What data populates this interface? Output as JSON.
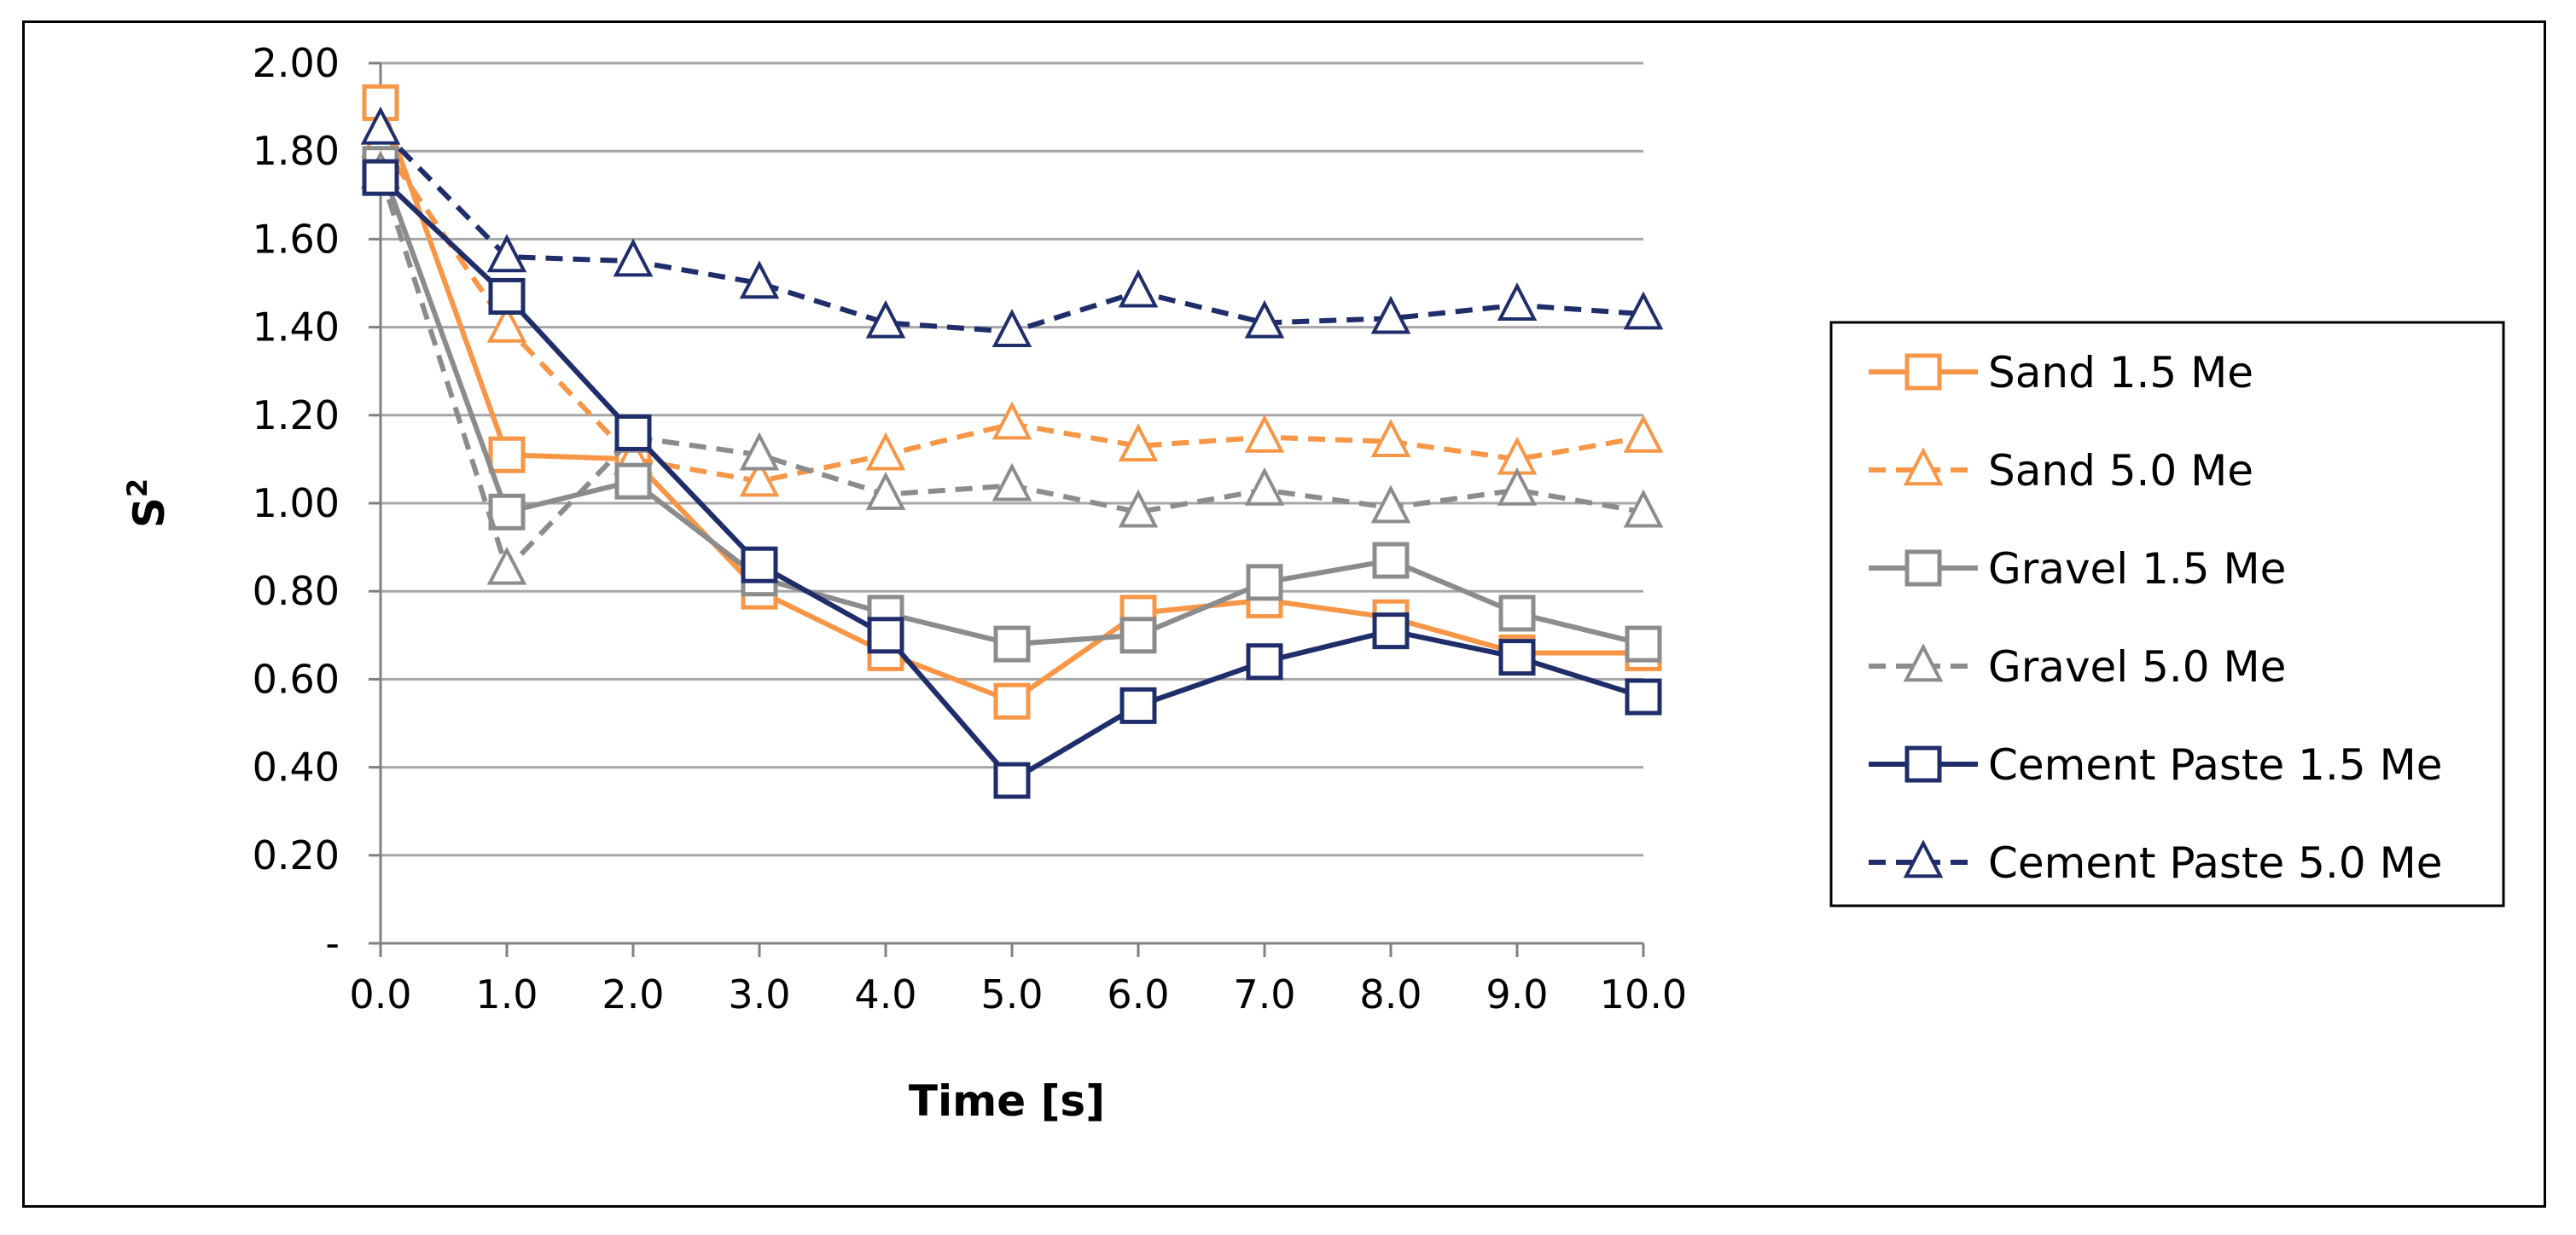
{
  "chart_data": {
    "type": "line",
    "title": "",
    "xlabel": "Time [s]",
    "ylabel_main": "S",
    "ylabel_sup": "2",
    "xlim": [
      0,
      10
    ],
    "ylim": [
      0,
      2
    ],
    "grid": true,
    "legend_position": "right",
    "x": [
      0,
      1,
      2,
      3,
      4,
      5,
      6,
      7,
      8,
      9,
      10
    ],
    "x_tick_labels": [
      "0.0",
      "1.0",
      "2.0",
      "3.0",
      "4.0",
      "5.0",
      "6.0",
      "7.0",
      "8.0",
      "9.0",
      "10.0"
    ],
    "y_ticks": [
      0,
      0.2,
      0.4,
      0.6,
      0.8,
      1.0,
      1.2,
      1.4,
      1.6,
      1.8,
      2.0
    ],
    "y_tick_labels": [
      "-",
      "0.20",
      "0.40",
      "0.60",
      "0.80",
      "1.00",
      "1.20",
      "1.40",
      "1.60",
      "1.80",
      "2.00"
    ],
    "series": [
      {
        "name": "Sand 1.5 Me",
        "color": "#F79646",
        "dashed": false,
        "marker": "square",
        "values": [
          1.91,
          1.11,
          1.1,
          0.8,
          0.66,
          0.55,
          0.75,
          0.78,
          0.74,
          0.66,
          0.66
        ]
      },
      {
        "name": "Sand 5.0 Me",
        "color": "#F79646",
        "dashed": true,
        "marker": "triangle",
        "values": [
          1.82,
          1.4,
          1.1,
          1.05,
          1.11,
          1.18,
          1.13,
          1.15,
          1.14,
          1.1,
          1.15
        ]
      },
      {
        "name": "Gravel 1.5 Me",
        "color": "#8C8C8C",
        "dashed": false,
        "marker": "square",
        "values": [
          1.77,
          0.98,
          1.05,
          0.83,
          0.75,
          0.68,
          0.7,
          0.82,
          0.87,
          0.75,
          0.68
        ]
      },
      {
        "name": "Gravel 5.0 Me",
        "color": "#8C8C8C",
        "dashed": true,
        "marker": "triangle",
        "values": [
          1.75,
          0.85,
          1.15,
          1.11,
          1.02,
          1.04,
          0.98,
          1.03,
          0.99,
          1.03,
          0.98
        ]
      },
      {
        "name": "Cement Paste 1.5 Me",
        "color": "#1F2D6B",
        "dashed": false,
        "marker": "square",
        "values": [
          1.74,
          1.47,
          1.16,
          0.86,
          0.7,
          0.37,
          0.54,
          0.64,
          0.71,
          0.65,
          0.56
        ]
      },
      {
        "name": "Cement Paste 5.0 Me",
        "color": "#1F2D6B",
        "dashed": true,
        "marker": "triangle",
        "values": [
          1.85,
          1.56,
          1.55,
          1.5,
          1.41,
          1.39,
          1.48,
          1.41,
          1.42,
          1.45,
          1.43
        ]
      }
    ]
  }
}
